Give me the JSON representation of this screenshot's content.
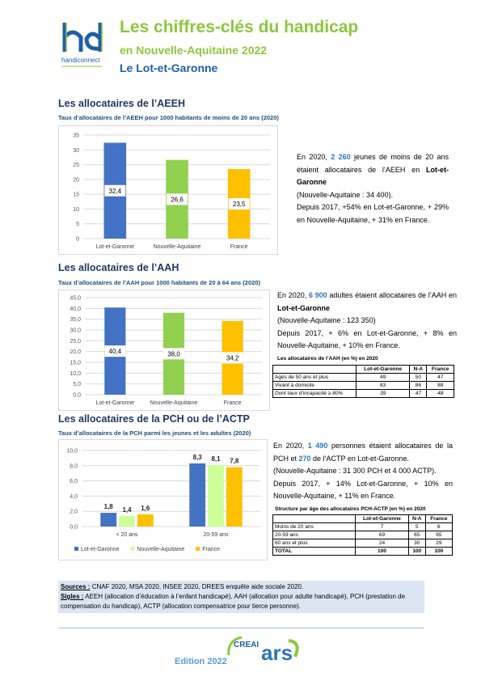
{
  "header": {
    "title": "Les chiffres-clés du handicap",
    "subtitle": "en Nouvelle-Aquitaine 2022",
    "territory": "Le Lot-et-Garonne",
    "logo_text": "handiconnect"
  },
  "sections": [
    {
      "title": "Les allocataires de l’AEEH",
      "text": [
        "En 2020, ",
        "2 260",
        " jeunes de moins de 20 ans étaient allocataires de l’AEEH en ",
        "Lot-et-Garonne",
        "(Nouvelle-Aquitaine : 34 400).",
        "Depuis 2017, +54% en Lot-et-Garonne, + 29% en Nouvelle-Aquitaine, + 31% en France."
      ]
    },
    {
      "title": "Les allocataires de l’AAH",
      "text": [
        "En 2020, ",
        "6 900",
        " adultes étaient allocataires de l’AAH en ",
        "Lot-et-Garonne",
        "(Nouvelle-Aquitaine : 123 350)",
        "Depuis 2017, + 6% en Lot-et-Garonne, + 8% en Nouvelle-Aquitaine, + 10% en France."
      ]
    },
    {
      "title": "Les allocataires de la PCH ou de l’ACTP",
      "text": [
        "En 2020, ",
        "1 490",
        " personnes étaient allocataires de la PCH et ",
        "270",
        " de l’ACTP en Lot-et-Garonne.",
        "(Nouvelle-Aquitaine : 31 300 PCH et 4 000 ACTP).",
        "Depuis 2017, + 14% Lot-et-Garonne, + 10% en Nouvelle-Aquitaine, + 11% en France."
      ]
    }
  ],
  "chart_data": [
    {
      "type": "bar",
      "title": "Taux d’allocataires de l’AEEH pour 1000 habitants de moins de 20 ans (2020)",
      "categories": [
        "Lot-et-Garonne",
        "Nouvelle-Aquitaine",
        "France"
      ],
      "series": [
        {
          "values": [
            32.4,
            26.6,
            23.5
          ],
          "value_labels": [
            "32,4",
            "26,6",
            "23,5"
          ],
          "colors": [
            "#4472c4",
            "#92d050",
            "#ffc000"
          ]
        }
      ],
      "ylim": [
        0,
        35
      ],
      "yticks": [
        0,
        5,
        10,
        15,
        20,
        25,
        30,
        35
      ],
      "grid": true,
      "value_label_position": "inside"
    },
    {
      "type": "bar",
      "title": "Taux d’allocataires de l’AAH pour 1000 habitants de 20 à 64 ans (2020)",
      "categories": [
        "Lot-et-Garonne",
        "Nouvelle-Aquitaine",
        "France"
      ],
      "series": [
        {
          "values": [
            40.4,
            38.0,
            34.2
          ],
          "value_labels": [
            "40,4",
            "38,0",
            "34,2"
          ],
          "colors": [
            "#4472c4",
            "#92d050",
            "#ffc000"
          ]
        }
      ],
      "ylim": [
        0,
        45
      ],
      "yticks": [
        {
          "value": 0,
          "label": "0,0"
        },
        {
          "value": 5,
          "label": "5,0"
        },
        {
          "value": 10,
          "label": "10,0"
        },
        {
          "value": 15,
          "label": "15,0"
        },
        {
          "value": 20,
          "label": "20,0"
        },
        {
          "value": 25,
          "label": "25,0"
        },
        {
          "value": 30,
          "label": "30,0"
        },
        {
          "value": 35,
          "label": "35,0"
        },
        {
          "value": 40,
          "label": "40,0"
        },
        {
          "value": 45,
          "label": "45,0"
        }
      ],
      "grid": true,
      "value_label_position": "inside"
    },
    {
      "type": "bar",
      "title": "Taux d’allocataires de la PCH parmi les jeunes et les adultes (2020)",
      "categories": [
        "< 20 ans",
        "20-59 ans"
      ],
      "series": [
        {
          "name": "Lot-et-Garonne",
          "color": "#4472c4",
          "values": [
            1.8,
            8.3
          ],
          "value_labels": [
            "1,8",
            "8,3"
          ]
        },
        {
          "name": "Nouvelle-Aquitaine",
          "color": "#ccff99",
          "values": [
            1.4,
            8.1
          ],
          "value_labels": [
            "1,4",
            "8,1"
          ]
        },
        {
          "name": "France",
          "color": "#ffc000",
          "values": [
            1.6,
            7.8
          ],
          "value_labels": [
            "1,6",
            "7,8"
          ]
        }
      ],
      "ylim": [
        0,
        10
      ],
      "yticks": [
        {
          "value": 0,
          "label": "0,0"
        },
        {
          "value": 2,
          "label": "2,0"
        },
        {
          "value": 4,
          "label": "4,0"
        },
        {
          "value": 6,
          "label": "6,0"
        },
        {
          "value": 8,
          "label": "8,0"
        },
        {
          "value": 10,
          "label": "10,0"
        }
      ],
      "grid": true,
      "legend": "bottom",
      "value_label_position": "above"
    }
  ],
  "tables": [
    {
      "title": "Les allocataires de l’AAH (en %) en 2020",
      "header": [
        "Lot-et-Garonne",
        "N-A",
        "France"
      ],
      "rows": [
        [
          "Agés de 50 ans et plus",
          49,
          50,
          47
        ],
        [
          "Vivant à domicile",
          83,
          86,
          88
        ],
        [
          "Dont taux d’incapacité ≥ 80%",
          39,
          47,
          48
        ]
      ]
    },
    {
      "title": "Structure par âge des allocataires PCH-ACTP (en %) en 2020",
      "header": [
        "Lot-et-Garonne",
        "N-A",
        "France"
      ],
      "rows": [
        [
          "Moins de 20 ans",
          7,
          5,
          6
        ],
        [
          "20-59 ans",
          69,
          65,
          65
        ],
        [
          "60 ans et plus",
          24,
          30,
          29
        ],
        [
          "TOTAL",
          100,
          100,
          100
        ]
      ]
    }
  ],
  "footer": {
    "sources_label": "Sources :",
    "sources": " CNAF 2020, MSA 2020, INSEE 2020, DREES enquête aide sociale 2020.",
    "sigles_label": "Sigles :",
    "sigles": " AEEH (allocation d’éducation à l’enfant handicapé), AAH (allocation pour adulte handicapé), PCH (prestation de compensation du handicap), ACTP (allocation compensatrice pour tierce personne).",
    "edition": "Edition 2022",
    "partner_logos": [
      "CREAI",
      "ars"
    ]
  }
}
